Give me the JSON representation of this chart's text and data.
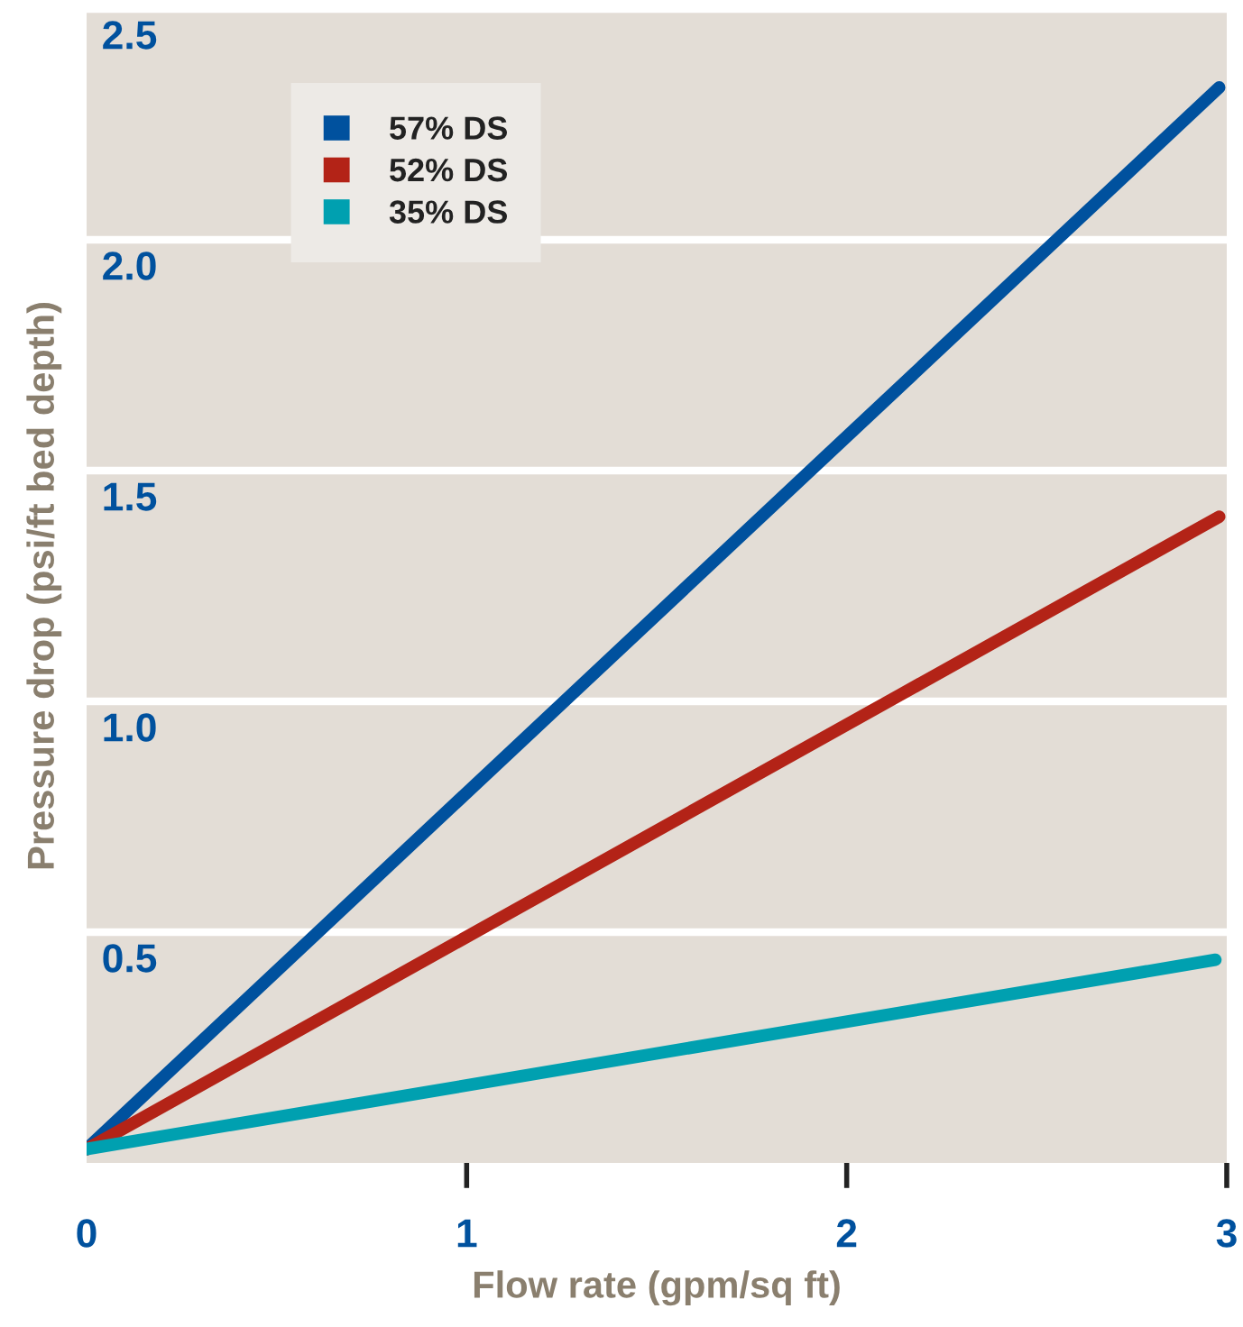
{
  "chart_data": {
    "type": "line",
    "xlabel": "Flow rate (gpm/sq ft)",
    "ylabel": "Pressure drop (psi/ft bed depth)",
    "xlim": [
      0,
      3
    ],
    "ylim": [
      0,
      2.5
    ],
    "xticks": [
      0,
      1,
      2,
      3
    ],
    "yticks": [
      {
        "value": 0.5,
        "label": "0.5"
      },
      {
        "value": 1,
        "label": "1.0"
      },
      {
        "value": 1.5,
        "label": "1.5"
      },
      {
        "value": 2,
        "label": "2.0"
      },
      {
        "value": 2.5,
        "label": "2.5"
      }
    ],
    "grid": "y",
    "legend": "top left",
    "marker": "none",
    "line_style": "solid",
    "series": [
      {
        "name": "57% DS",
        "color": "#00519e",
        "x": [
          0,
          2.98
        ],
        "values": [
          0.03,
          2.33
        ]
      },
      {
        "name": "52% DS",
        "color": "#b32317",
        "x": [
          0,
          2.98
        ],
        "values": [
          0.03,
          1.4
        ]
      },
      {
        "name": "35% DS",
        "color": "#00a0b0",
        "x": [
          0,
          2.97
        ],
        "values": [
          0.03,
          0.44
        ]
      }
    ]
  }
}
